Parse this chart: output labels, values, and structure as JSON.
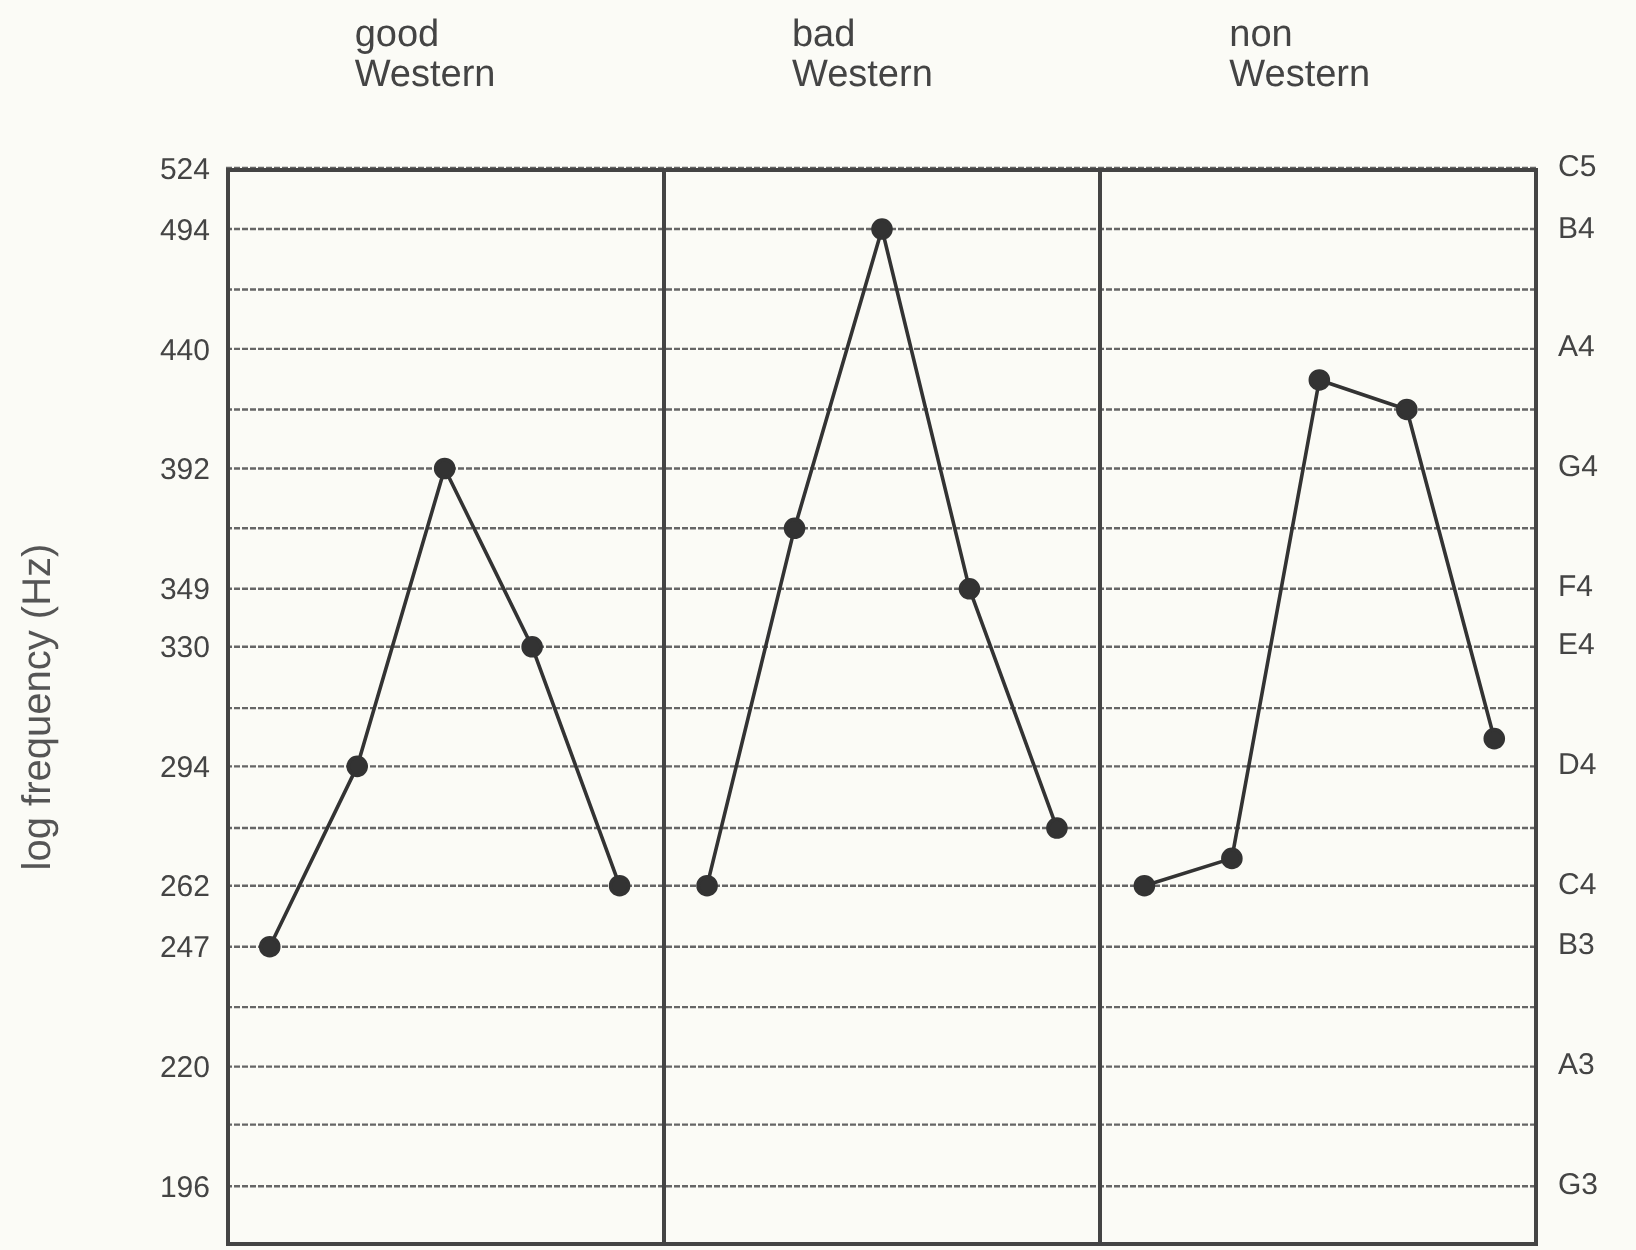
{
  "chart_data": {
    "type": "line",
    "ylabel": "log frequency (Hz)",
    "annotations": [
      "good Western",
      "bad Western",
      "non Western",
      "C5",
      "B4",
      "A4",
      "G4",
      "F4",
      "E4",
      "D4",
      "C4",
      "B3",
      "A3",
      "G3"
    ],
    "categories": [
      null,
      null,
      null,
      null,
      null,
      null,
      null,
      null,
      null,
      null,
      null,
      null,
      null,
      null,
      null
    ],
    "series": [
      {
        "color": "#333333",
        "values": [
          247,
          294,
          392,
          330,
          262,
          null,
          null,
          null,
          null,
          null,
          null,
          null,
          null,
          null,
          null
        ]
      },
      {
        "color": "#333333",
        "values": [
          null,
          null,
          null,
          null,
          null,
          262,
          370,
          494,
          349,
          277,
          null,
          null,
          null,
          null,
          null
        ]
      },
      {
        "color": "#333333",
        "values": [
          null,
          null,
          null,
          null,
          null,
          null,
          null,
          null,
          null,
          null,
          262,
          269,
          427,
          415,
          302
        ]
      }
    ],
    "ylim": [
      185,
      524
    ],
    "yticks": [
      524,
      494,
      {
        "value": 466,
        "label": null
      },
      440,
      {
        "value": 415,
        "label": null
      },
      392,
      {
        "value": 370,
        "label": null
      },
      349,
      330,
      {
        "value": 311,
        "label": null
      },
      294,
      {
        "value": 277,
        "label": null
      },
      262,
      247,
      {
        "value": 233,
        "label": null
      },
      220,
      {
        "value": 208,
        "label": null
      },
      196
    ],
    "log": true,
    "grid": "y",
    "marker": "circle",
    "tick_labels": "y"
  }
}
